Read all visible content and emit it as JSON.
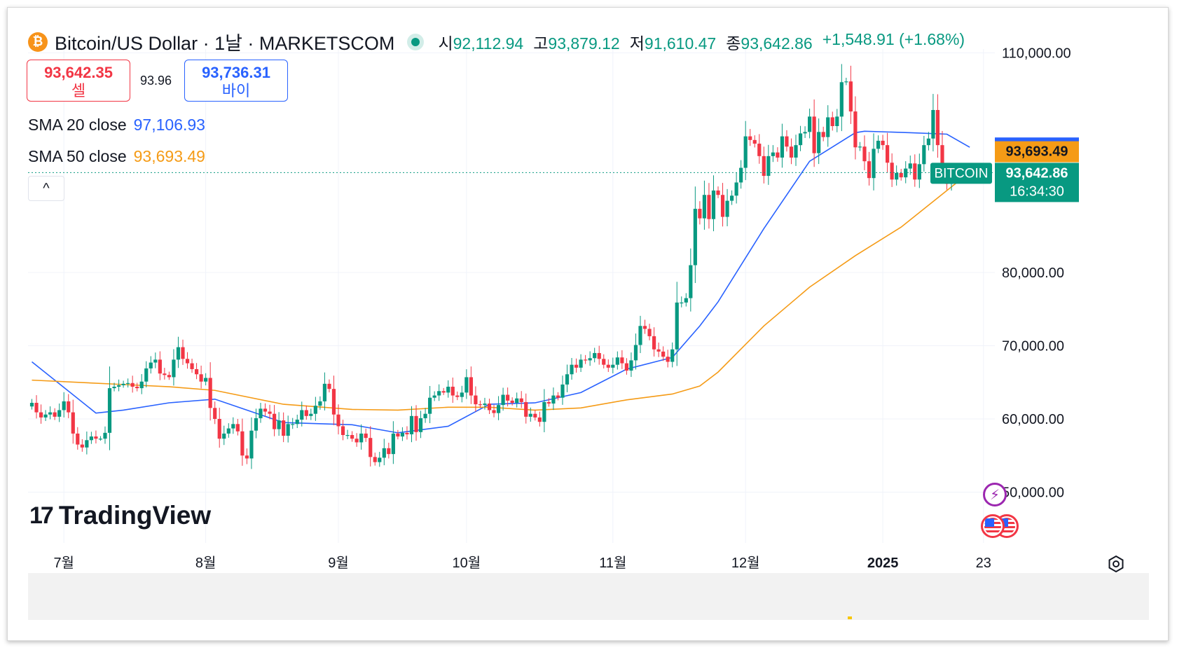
{
  "header": {
    "title": "Bitcoin/US Dollar · 1날 · MARKETSCOM",
    "logo_symbol": "₿",
    "ohlc": {
      "open_label": "시",
      "open": "92,112.94",
      "high_label": "고",
      "high": "93,879.12",
      "low_label": "저",
      "low": "91,610.47",
      "close_label": "종",
      "close": "93,642.86",
      "change": "+1,548.91 (+1.68%)"
    }
  },
  "quote": {
    "sell_price": "93,642.35",
    "sell_label": "셀",
    "spread": "93.96",
    "buy_price": "93,736.31",
    "buy_label": "바이"
  },
  "indicators": {
    "sma20_label": "SMA 20 close",
    "sma20_value": "97,106.93",
    "sma50_label": "SMA 50 close",
    "sma50_value": "93,693.49"
  },
  "collapse_symbol": "^",
  "watermark": {
    "mark": "17",
    "text": "TradingView"
  },
  "price_tags": {
    "sma20": "97,106.93",
    "sma50": "93,693.49",
    "symbol": "BITCOIN",
    "last": "93,642.86",
    "countdown": "16:34:30"
  },
  "colors": {
    "up": "#089981",
    "down": "#f23645",
    "sma20": "#2962ff",
    "sma50": "#f59b16",
    "accent": "#089981"
  },
  "icons": [
    "bitcoin-logo",
    "live-dot",
    "collapse-chevron-icon",
    "flash-icon",
    "us-flag-icon",
    "settings-icon"
  ],
  "chart_data": {
    "type": "candlestick",
    "title": "Bitcoin/US Dollar · 1날 · MARKETSCOM",
    "ylim": [
      44000,
      112000
    ],
    "y_ticks": [
      50000,
      60000,
      70000,
      80000,
      110000
    ],
    "y_tick_labels": [
      "50,000.00",
      "60,000.00",
      "70,000.00",
      "80,000.00",
      "110,000.00"
    ],
    "x_tick_labels": [
      "7월",
      "8월",
      "9월",
      "10월",
      "11월",
      "12월",
      "2025",
      "23"
    ],
    "last_price": 93642.86,
    "series": [
      {
        "name": "BITCOIN",
        "closes": [
          62200,
          60900,
          60200,
          60600,
          60900,
          60300,
          61200,
          62400,
          60900,
          58000,
          56500,
          56100,
          57100,
          57600,
          57300,
          57300,
          58100,
          64200,
          64400,
          64600,
          64800,
          64900,
          64400,
          64200,
          65100,
          66900,
          67700,
          68100,
          66200,
          66000,
          65700,
          68100,
          69800,
          68200,
          67600,
          66800,
          66100,
          65100,
          65600,
          61500,
          60000,
          57300,
          58000,
          58700,
          59300,
          58300,
          55000,
          54600,
          58400,
          60100,
          61400,
          61000,
          60700,
          58600,
          59800,
          57700,
          59300,
          59300,
          59900,
          61200,
          60400,
          60700,
          61800,
          62400,
          64800,
          64100,
          60600,
          59000,
          57800,
          57800,
          57300,
          56800,
          58000,
          57400,
          54800,
          54100,
          54700,
          56000,
          55200,
          58000,
          57600,
          58100,
          57900,
          60400,
          58200,
          60100,
          60700,
          62900,
          63200,
          63800,
          63600,
          64400,
          63200,
          63000,
          63600,
          65700,
          63200,
          62000,
          61900,
          62100,
          61200,
          60800,
          61900,
          63300,
          62500,
          62200,
          62800,
          62300,
          60300,
          60700,
          60200,
          59600,
          62300,
          62100,
          63200,
          62900,
          64700,
          66100,
          67400,
          67000,
          68100,
          68000,
          68300,
          69000,
          68200,
          67400,
          67000,
          67400,
          68400,
          67600,
          66600,
          68000,
          70100,
          72700,
          72300,
          71300,
          69500,
          69200,
          68500,
          67800,
          69500,
          75900,
          75900,
          76500,
          81000,
          88700,
          87400,
          90600,
          87300,
          91200,
          90600,
          87600,
          89800,
          90500,
          92300,
          94300,
          98600,
          98100,
          97600,
          95900,
          93200,
          95900,
          96400,
          95700,
          98600,
          97200,
          95700,
          97400,
          99000,
          99200,
          101300,
          96300,
          99200,
          98500,
          101200,
          100000,
          101300,
          106000,
          106100,
          102000,
          97100,
          97200,
          95200,
          92900,
          96900,
          98000,
          97400,
          95000,
          92700,
          93600,
          93000,
          94200,
          94900,
          92700,
          94800,
          97400,
          98300,
          102200,
          97400,
          93900,
          92100,
          93643
        ]
      },
      {
        "name": "SMA 20 close",
        "x_index": [
          0,
          14,
          20,
          30,
          40,
          55,
          70,
          80,
          91,
          100,
          110,
          120,
          130,
          140,
          146,
          150,
          160,
          170,
          180,
          182,
          192,
          200,
          205
        ],
        "values": [
          67800,
          60800,
          61200,
          62200,
          62700,
          59500,
          59200,
          58100,
          59000,
          62000,
          62200,
          63600,
          66800,
          68400,
          72700,
          76000,
          86000,
          95200,
          99100,
          99300,
          99100,
          98900,
          97107
        ]
      },
      {
        "name": "SMA 50 close",
        "x_index": [
          0,
          20,
          30,
          40,
          55,
          70,
          80,
          91,
          100,
          110,
          120,
          130,
          140,
          146,
          150,
          160,
          170,
          180,
          190,
          200,
          205
        ],
        "values": [
          65300,
          64700,
          64400,
          63900,
          62000,
          61300,
          61200,
          61600,
          61600,
          61200,
          61500,
          62600,
          63400,
          64500,
          66400,
          72700,
          78000,
          82300,
          86200,
          91200,
          93693
        ]
      }
    ]
  }
}
